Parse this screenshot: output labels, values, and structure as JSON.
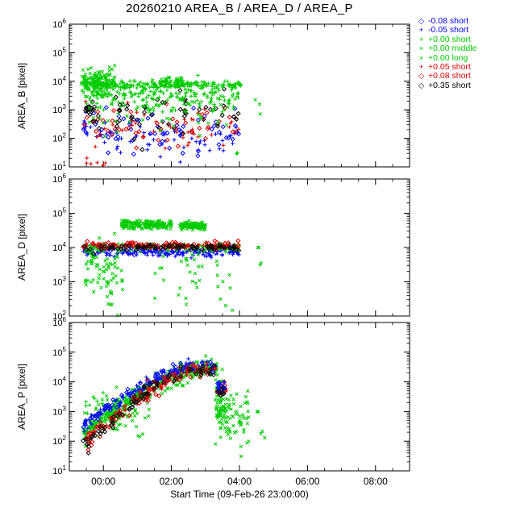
{
  "title": "20260210 AREA_B / AREA_D / AREA_P",
  "xaxis": {
    "label": "Start Time (09-Feb-26 23:00:00)",
    "tick_labels": [
      "00:00",
      "02:00",
      "04:00",
      "06:00",
      "08:00"
    ],
    "tick_hours": [
      1,
      3,
      5,
      7,
      9
    ],
    "range_hours": [
      0,
      10
    ]
  },
  "legend": {
    "items": [
      {
        "label": "-0.08 short",
        "color": "#0000ff",
        "symbol": "diamond",
        "glyph": "◇"
      },
      {
        "label": "-0.05 short",
        "color": "#0000ff",
        "symbol": "plus",
        "glyph": "+"
      },
      {
        "label": "+0.00 short",
        "color": "#00cc00",
        "symbol": "plus",
        "glyph": "+"
      },
      {
        "label": "+0.00 middle",
        "color": "#00cc00",
        "symbol": "cross",
        "glyph": "×"
      },
      {
        "label": "+0.00 long",
        "color": "#00cc00",
        "symbol": "cross",
        "glyph": "×"
      },
      {
        "label": "+0.05 short",
        "color": "#dd0000",
        "symbol": "plus",
        "glyph": "+"
      },
      {
        "label": "+0.08 short",
        "color": "#dd0000",
        "symbol": "diamond",
        "glyph": "◇"
      },
      {
        "label": "+0.35 short",
        "color": "#000000",
        "symbol": "diamond",
        "glyph": "◇"
      }
    ]
  },
  "cluster_format": [
    "series_index",
    "n_points",
    "t_start_hours_after_23",
    "t_end_hours_after_23",
    "trend_path_[t,log10_pixel]",
    "log10_scatter_sigma"
  ],
  "chart_data": [
    {
      "type": "scatter",
      "ylabel": "AREA_B [pixel]",
      "yscale": "log",
      "ylim": [
        10,
        1000000
      ],
      "ytick_exponents": [
        1,
        2,
        3,
        4,
        5,
        6
      ],
      "clusters": [
        [
          0,
          60,
          0.4,
          5.0,
          [
            [
              0.4,
              2.3
            ],
            [
              5.0,
              2.2
            ]
          ],
          0.45
        ],
        [
          1,
          55,
          0.4,
          5.0,
          [
            [
              0.4,
              1.9
            ],
            [
              5.0,
              1.85
            ]
          ],
          0.3
        ],
        [
          1,
          10,
          0.4,
          0.65,
          [
            [
              0.4,
              2.45
            ],
            [
              0.65,
              2.45
            ]
          ],
          0.15
        ],
        [
          5,
          45,
          0.45,
          5.0,
          [
            [
              0.45,
              2.4
            ],
            [
              5.0,
              2.3
            ]
          ],
          0.4
        ],
        [
          5,
          8,
          0.4,
          1.3,
          [
            [
              0.4,
              1.15
            ],
            [
              1.3,
              1.1
            ]
          ],
          0.07
        ],
        [
          6,
          45,
          0.45,
          5.0,
          [
            [
              0.45,
              2.6
            ],
            [
              5.0,
              2.5
            ]
          ],
          0.35
        ],
        [
          7,
          55,
          0.45,
          5.0,
          [
            [
              0.45,
              2.9
            ],
            [
              5.0,
              2.8
            ]
          ],
          0.35
        ],
        [
          7,
          15,
          0.45,
          0.75,
          [
            [
              0.45,
              3.1
            ],
            [
              0.75,
              3.05
            ]
          ],
          0.12
        ],
        [
          3,
          130,
          0.35,
          1.35,
          [
            [
              0.35,
              4.0
            ],
            [
              1.35,
              3.95
            ]
          ],
          0.22
        ],
        [
          2,
          220,
          0.45,
          5.05,
          [
            [
              0.45,
              3.88
            ],
            [
              5.05,
              3.88
            ]
          ],
          0.06
        ],
        [
          2,
          160,
          0.5,
          5.0,
          [
            [
              0.5,
              3.5
            ],
            [
              5.0,
              3.5
            ]
          ],
          0.25
        ],
        [
          4,
          70,
          0.5,
          4.9,
          [
            [
              0.5,
              3.0
            ],
            [
              4.9,
              3.1
            ]
          ],
          0.4
        ],
        [
          3,
          30,
          2.7,
          3.35,
          [
            [
              2.7,
              4.02
            ],
            [
              3.35,
              4.02
            ]
          ],
          0.1
        ],
        [
          3,
          3,
          5.45,
          5.65,
          [
            [
              5.45,
              3.3
            ],
            [
              5.65,
              3.2
            ]
          ],
          0.15
        ],
        [
          2,
          2,
          4.85,
          5.0,
          [
            [
              4.85,
              1.5
            ],
            [
              5.0,
              1.45
            ]
          ],
          0.1
        ]
      ]
    },
    {
      "type": "scatter",
      "ylabel": "AREA_D [pixel]",
      "yscale": "log",
      "ylim": [
        100,
        1000000
      ],
      "ytick_exponents": [
        2,
        3,
        4,
        5,
        6
      ],
      "clusters": [
        [
          1,
          150,
          0.4,
          5.0,
          [
            [
              0.4,
              3.85
            ],
            [
              5.0,
              3.85
            ]
          ],
          0.06
        ],
        [
          0,
          60,
          0.4,
          5.0,
          [
            [
              0.4,
              3.95
            ],
            [
              5.0,
              3.95
            ]
          ],
          0.06
        ],
        [
          4,
          60,
          0.45,
          1.6,
          [
            [
              0.45,
              3.5
            ],
            [
              1.6,
              3.2
            ]
          ],
          0.45
        ],
        [
          4,
          40,
          2.4,
          4.8,
          [
            [
              2.4,
              3.3
            ],
            [
              4.8,
              3.2
            ]
          ],
          0.45
        ],
        [
          4,
          12,
          1.1,
          1.3,
          [
            [
              1.1,
              2.9
            ],
            [
              1.3,
              2.9
            ]
          ],
          0.5
        ],
        [
          4,
          8,
          0.5,
          0.9,
          [
            [
              0.5,
              3.9
            ],
            [
              0.9,
              3.6
            ]
          ],
          0.15
        ],
        [
          2,
          150,
          0.4,
          5.0,
          [
            [
              0.4,
              4.0
            ],
            [
              5.0,
              4.0
            ]
          ],
          0.07
        ],
        [
          5,
          60,
          0.45,
          5.0,
          [
            [
              0.45,
              4.04
            ],
            [
              5.0,
              4.04
            ]
          ],
          0.05
        ],
        [
          6,
          80,
          0.4,
          5.0,
          [
            [
              0.4,
              4.08
            ],
            [
              5.0,
              4.07
            ]
          ],
          0.05
        ],
        [
          7,
          80,
          0.4,
          5.0,
          [
            [
              0.4,
              4.0
            ],
            [
              5.0,
              4.0
            ]
          ],
          0.05
        ],
        [
          3,
          170,
          1.5,
          3.0,
          [
            [
              1.5,
              4.68
            ],
            [
              3.0,
              4.66
            ]
          ],
          0.06
        ],
        [
          3,
          110,
          3.25,
          4.0,
          [
            [
              3.25,
              4.65
            ],
            [
              4.0,
              4.63
            ]
          ],
          0.06
        ],
        [
          3,
          2,
          5.5,
          5.6,
          [
            [
              5.5,
              4.0
            ],
            [
              5.6,
              4.0
            ]
          ],
          0.04
        ],
        [
          2,
          2,
          5.55,
          5.7,
          [
            [
              5.55,
              3.5
            ],
            [
              5.7,
              3.45
            ]
          ],
          0.08
        ]
      ]
    },
    {
      "type": "scatter",
      "ylabel": "AREA_P [pixel]",
      "yscale": "log",
      "ylim": [
        10,
        1000000
      ],
      "ytick_exponents": [
        1,
        2,
        3,
        4,
        5,
        6
      ],
      "clusters": [
        [
          4,
          70,
          0.45,
          2.4,
          [
            [
              0.45,
              2.5
            ],
            [
              2.4,
              3.3
            ]
          ],
          0.45
        ],
        [
          2,
          40,
          0.45,
          1.6,
          [
            [
              0.45,
              2.9
            ],
            [
              1.6,
              3.1
            ]
          ],
          0.3
        ],
        [
          3,
          130,
          0.5,
          4.3,
          [
            [
              0.5,
              2.2
            ],
            [
              1.0,
              2.75
            ],
            [
              1.5,
              3.1
            ],
            [
              2.0,
              3.5
            ],
            [
              2.5,
              3.85
            ],
            [
              3.0,
              4.1
            ],
            [
              3.5,
              4.3
            ],
            [
              4.0,
              4.4
            ],
            [
              4.3,
              4.38
            ]
          ],
          0.2
        ],
        [
          2,
          260,
          0.4,
          4.35,
          [
            [
              0.4,
              2.25
            ],
            [
              1.0,
              2.85
            ],
            [
              1.5,
              3.2
            ],
            [
              2.0,
              3.6
            ],
            [
              2.5,
              3.95
            ],
            [
              3.0,
              4.2
            ],
            [
              3.5,
              4.38
            ],
            [
              4.0,
              4.48
            ],
            [
              4.35,
              4.45
            ]
          ],
          0.1
        ],
        [
          1,
          80,
          0.4,
          4.3,
          [
            [
              0.4,
              2.5
            ],
            [
              1.0,
              3.05
            ],
            [
              1.5,
              3.4
            ],
            [
              2.0,
              3.8
            ],
            [
              2.5,
              4.1
            ],
            [
              3.0,
              4.32
            ],
            [
              3.5,
              4.48
            ],
            [
              4.0,
              4.55
            ],
            [
              4.3,
              4.5
            ]
          ],
          0.12
        ],
        [
          0,
          80,
          0.4,
          4.3,
          [
            [
              0.4,
              2.5
            ],
            [
              1.0,
              3.05
            ],
            [
              1.5,
              3.4
            ],
            [
              2.0,
              3.8
            ],
            [
              2.5,
              4.1
            ],
            [
              3.0,
              4.32
            ],
            [
              3.5,
              4.48
            ],
            [
              4.0,
              4.55
            ],
            [
              4.3,
              4.5
            ]
          ],
          0.1
        ],
        [
          5,
          90,
          0.5,
          4.3,
          [
            [
              0.5,
              2.05
            ],
            [
              1.0,
              2.5
            ],
            [
              1.5,
              2.95
            ],
            [
              2.0,
              3.4
            ],
            [
              2.5,
              3.8
            ],
            [
              3.0,
              4.1
            ],
            [
              3.5,
              4.33
            ],
            [
              4.0,
              4.45
            ],
            [
              4.3,
              4.42
            ]
          ],
          0.12
        ],
        [
          6,
          70,
          0.5,
          4.3,
          [
            [
              0.5,
              2.05
            ],
            [
              1.0,
              2.5
            ],
            [
              1.5,
              2.95
            ],
            [
              2.0,
              3.4
            ],
            [
              2.5,
              3.8
            ],
            [
              3.0,
              4.1
            ],
            [
              3.5,
              4.33
            ],
            [
              4.0,
              4.45
            ],
            [
              4.3,
              4.42
            ]
          ],
          0.15
        ],
        [
          7,
          70,
          0.45,
          4.25,
          [
            [
              0.45,
              1.95
            ],
            [
              1.0,
              2.4
            ],
            [
              1.5,
              2.9
            ],
            [
              2.2,
              3.6
            ],
            [
              3.0,
              4.15
            ],
            [
              3.5,
              4.35
            ],
            [
              4.0,
              4.45
            ],
            [
              4.25,
              4.42
            ]
          ],
          0.12
        ],
        [
          7,
          6,
          0.4,
          0.7,
          [
            [
              0.4,
              1.85
            ],
            [
              0.7,
              1.95
            ]
          ],
          0.18
        ],
        [
          6,
          5,
          0.45,
          0.75,
          [
            [
              0.45,
              2.05
            ],
            [
              0.75,
              2.1
            ]
          ],
          0.15
        ],
        [
          4,
          70,
          4.3,
          5.3,
          [
            [
              4.3,
              3.6
            ],
            [
              4.55,
              3.0
            ],
            [
              5.3,
              2.9
            ]
          ],
          0.5
        ],
        [
          3,
          55,
          4.28,
          4.6,
          [
            [
              4.28,
              3.3
            ],
            [
              4.6,
              3.1
            ]
          ],
          0.55
        ],
        [
          6,
          12,
          4.35,
          4.65,
          [
            [
              4.35,
              3.75
            ],
            [
              4.65,
              3.7
            ]
          ],
          0.12
        ],
        [
          1,
          10,
          4.35,
          4.6,
          [
            [
              4.35,
              3.85
            ],
            [
              4.6,
              3.8
            ]
          ],
          0.1
        ],
        [
          0,
          8,
          4.35,
          4.6,
          [
            [
              4.35,
              3.9
            ],
            [
              4.6,
              3.85
            ]
          ],
          0.08
        ],
        [
          7,
          6,
          4.35,
          4.55,
          [
            [
              4.35,
              3.7
            ],
            [
              4.55,
              3.65
            ]
          ],
          0.1
        ],
        [
          3,
          2,
          5.5,
          5.6,
          [
            [
              5.5,
              3.05
            ],
            [
              5.6,
              3.0
            ]
          ],
          0.05
        ],
        [
          4,
          3,
          5.5,
          5.75,
          [
            [
              5.5,
              2.35
            ],
            [
              5.75,
              2.2
            ]
          ],
          0.12
        ]
      ]
    }
  ]
}
